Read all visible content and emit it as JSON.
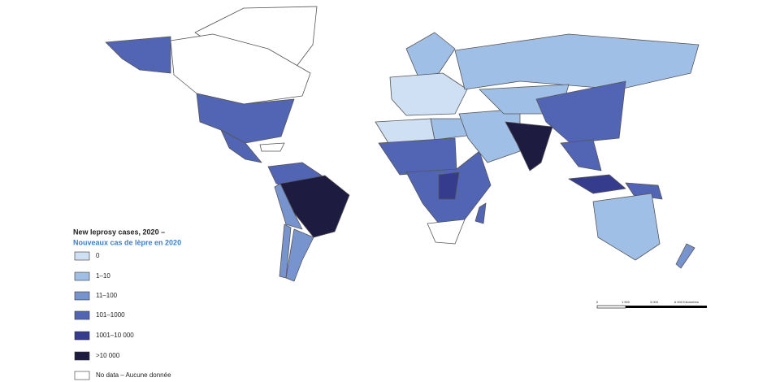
{
  "legend": {
    "title": "New leprosy cases, 2020 –",
    "subtitle": "Nouveaux cas de lèpre en 2020",
    "items": [
      {
        "label": "0",
        "color": "#cfe0f5"
      },
      {
        "label": "1–10",
        "color": "#a0bfe6"
      },
      {
        "label": "11–100",
        "color": "#7894cf"
      },
      {
        "label": "101–1000",
        "color": "#5165b4"
      },
      {
        "label": "1001–10 000",
        "color": "#353c8e"
      },
      {
        "label": ">10 000",
        "color": "#1d1b3f"
      },
      {
        "label": "No data – Aucune donnée",
        "color": "#ffffff"
      }
    ]
  },
  "scale_bar": {
    "labels": [
      "0",
      "1 500",
      "3 000",
      "6 000 Kilometres"
    ]
  }
}
